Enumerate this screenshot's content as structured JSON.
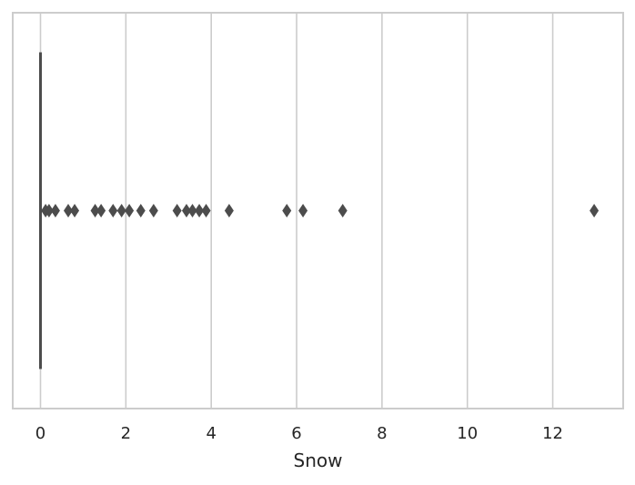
{
  "chart_data": {
    "type": "boxplot",
    "orientation": "horizontal",
    "xlabel": "Snow",
    "ylabel": "",
    "xlim": [
      -0.65,
      13.65
    ],
    "xticks": [
      0,
      2,
      4,
      6,
      8,
      10,
      12
    ],
    "grid": {
      "vertical": true,
      "horizontal": false
    },
    "box": {
      "q1": 0,
      "median": 0,
      "q3": 0,
      "whisker_low": 0,
      "whisker_high": 0
    },
    "outliers": [
      0.12,
      0.2,
      0.35,
      0.65,
      0.8,
      1.28,
      1.42,
      1.7,
      1.9,
      2.08,
      2.35,
      2.65,
      3.2,
      3.42,
      3.56,
      3.72,
      3.88,
      4.42,
      5.77,
      6.15,
      7.08,
      12.97
    ],
    "colors": {
      "box_line": "#4c4c4c",
      "outlier": "#4c4c4c",
      "grid": "#cccccc",
      "frame": "#cccccc",
      "text": "#262626"
    }
  }
}
